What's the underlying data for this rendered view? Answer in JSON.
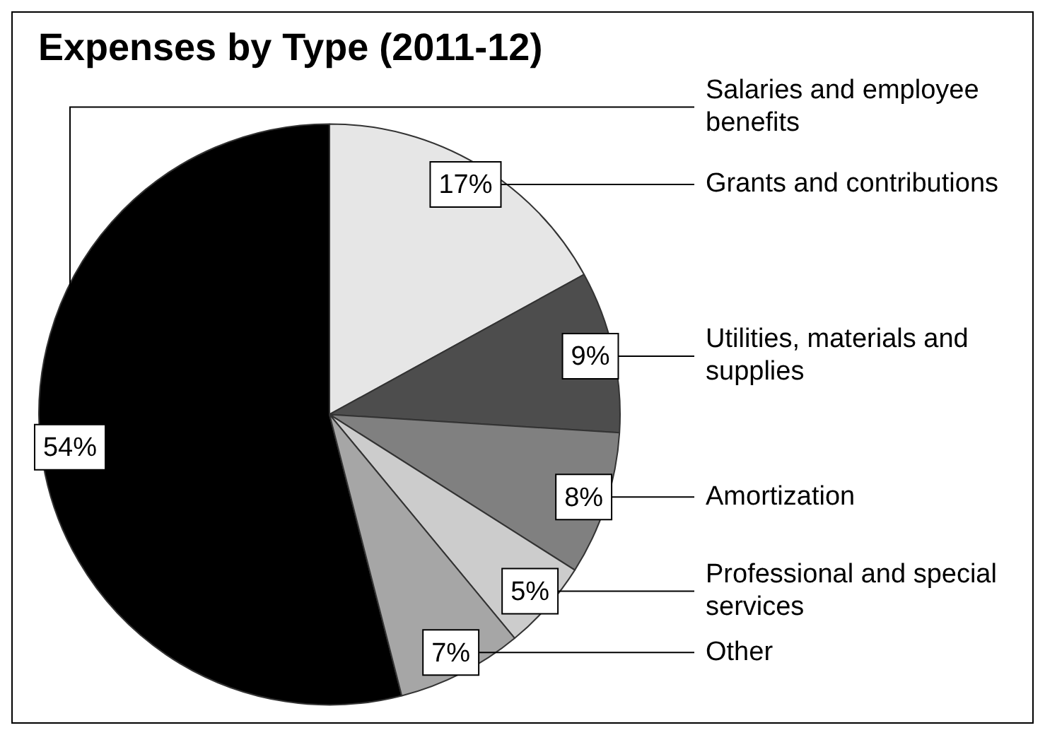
{
  "chart_data": {
    "type": "pie",
    "title": "Expenses by Type (2011-12)",
    "categories": [
      "Salaries and employee benefits",
      "Grants and contributions",
      "Utilities, materials and supplies",
      "Amortization",
      "Professional and special services",
      "Other"
    ],
    "values": [
      54,
      17,
      9,
      8,
      5,
      7
    ],
    "value_labels": [
      "54%",
      "17%",
      "9%",
      "8%",
      "5%",
      "7%"
    ],
    "colors": [
      "#000000",
      "#e6e6e6",
      "#4d4d4d",
      "#808080",
      "#cccccc",
      "#a6a6a6"
    ]
  }
}
